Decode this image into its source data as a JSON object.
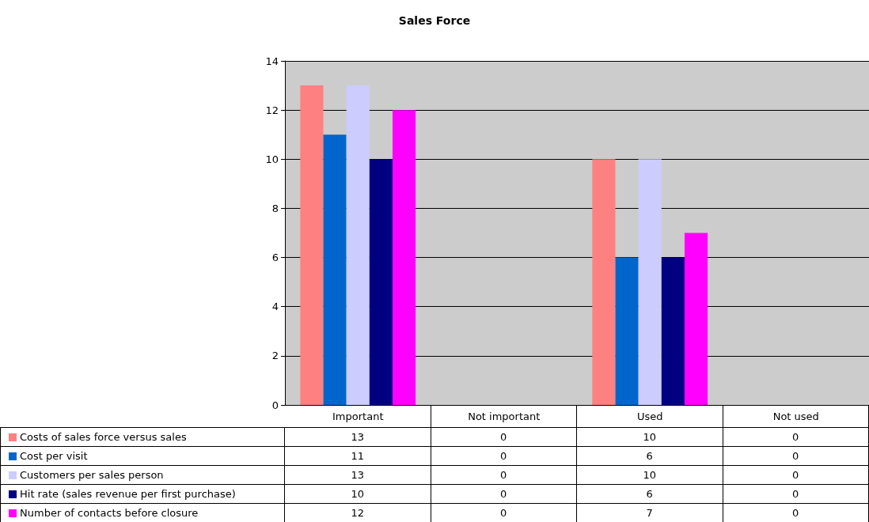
{
  "chart_data": {
    "type": "bar",
    "title": "Sales Force",
    "categories": [
      "Important",
      "Not important",
      "Used",
      "Not used"
    ],
    "series": [
      {
        "name": "Costs of sales force versus sales",
        "color": "#ff8080",
        "values": [
          13,
          0,
          10,
          0
        ]
      },
      {
        "name": "Cost per visit",
        "color": "#0066cc",
        "values": [
          11,
          0,
          6,
          0
        ]
      },
      {
        "name": "Customers per sales person",
        "color": "#ccccff",
        "values": [
          13,
          0,
          10,
          0
        ]
      },
      {
        "name": "Hit rate (sales revenue per first purchase)",
        "color": "#000080",
        "values": [
          10,
          0,
          6,
          0
        ]
      },
      {
        "name": "Number of contacts before closure",
        "color": "#ff00ff",
        "values": [
          12,
          0,
          7,
          0
        ]
      }
    ],
    "ylim": [
      0,
      14
    ],
    "yticks": [
      0,
      2,
      4,
      6,
      8,
      10,
      12,
      14
    ],
    "grid": "y",
    "legend": "bottom left",
    "data_labels": true
  }
}
